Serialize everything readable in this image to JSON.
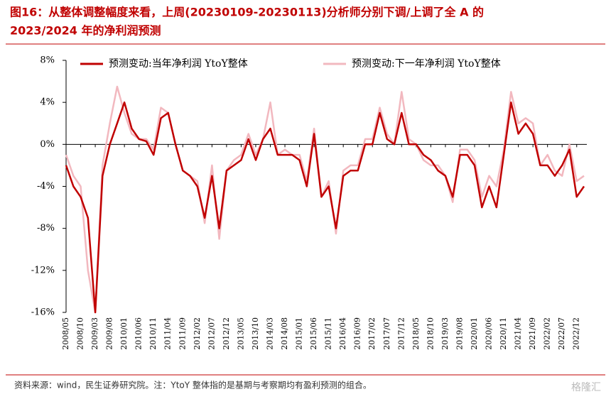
{
  "chart_data": {
    "type": "line",
    "title": "图16：从整体调整幅度来看，上周(20230109-20230113)分析师分别下调/上调了全  A  的",
    "subtitle": "2023/2024 年的净利润预测",
    "source": "资料来源：wind，民生证券研究院。注：YtoY 整体指的是基期与考察期均有盈利预测的组合。",
    "watermark": "格隆汇",
    "categories": [
      "2008/05",
      null,
      "2008/10",
      null,
      "2009/03",
      null,
      "2009/08",
      null,
      "2010/01",
      null,
      "2010/06",
      null,
      "2010/11",
      null,
      "2011/04",
      null,
      "2011/09",
      null,
      "2012/02",
      null,
      "2012/07",
      null,
      "2012/12",
      null,
      "2013/05",
      null,
      "2013/10",
      null,
      "2014/03",
      null,
      "2014/08",
      null,
      "2015/01",
      null,
      "2015/06",
      null,
      "2015/11",
      null,
      "2016/04",
      null,
      "2016/09",
      null,
      "2017/02",
      null,
      "2017/07",
      null,
      "2017/12",
      null,
      "2018/05",
      null,
      "2018/10",
      null,
      "2019/03",
      null,
      "2019/08",
      null,
      "2020/01",
      null,
      "2020/06",
      null,
      "2020/11",
      null,
      "2021/04",
      null,
      "2021/09",
      null,
      "2022/02",
      null,
      "2022/07",
      null,
      "2022/12",
      null
    ],
    "series": [
      {
        "name": "预测变动:当年净利润 YtoY整体",
        "color": "#c00000",
        "values": [
          -2,
          -4,
          -5,
          -7,
          -16,
          -3,
          0,
          2,
          4,
          1.5,
          0.5,
          0.3,
          -1,
          2.5,
          3,
          0,
          -2.5,
          -3,
          -4,
          -7,
          -3,
          -8,
          -2.5,
          -2,
          -1.5,
          0.5,
          -1.5,
          0.5,
          1.5,
          -1,
          -1,
          -1,
          -1.5,
          -4,
          1,
          -5,
          -4,
          -8,
          -3,
          -2.5,
          -2.5,
          0,
          0,
          3,
          0.5,
          0,
          3,
          0,
          0,
          -1,
          -1.5,
          -2.5,
          -3,
          -5,
          -1,
          -1,
          -2,
          -6,
          -4,
          -6,
          -1,
          4,
          1,
          2,
          1,
          -2,
          -2,
          -3,
          -2,
          -0.5,
          -5,
          -4
        ]
      },
      {
        "name": "预测变动:下一年净利润 YtoY整体",
        "color": "#f2b8bf",
        "values": [
          -1,
          -3,
          -4,
          -12,
          -16,
          -2,
          2,
          5.5,
          3,
          1,
          0.5,
          0.5,
          -0.5,
          3.5,
          3,
          0,
          -2.5,
          -3,
          -3.5,
          -7.5,
          -2,
          -9,
          -2.5,
          -1.5,
          -1,
          1,
          -1,
          0.5,
          4,
          -1,
          -0.5,
          -1,
          -1,
          -3.5,
          1.5,
          -5,
          -3.5,
          -8.5,
          -2.5,
          -2,
          -2,
          0.5,
          0.5,
          3.5,
          1,
          0,
          5,
          0.5,
          0,
          -1.5,
          -2,
          -2,
          -3,
          -5.5,
          -0.5,
          -0.5,
          -1.5,
          -5,
          -3,
          -4,
          -0.5,
          5,
          2,
          2.5,
          2,
          -2,
          -1,
          -2.5,
          -3,
          0,
          -3.5,
          -3
        ]
      }
    ],
    "ylim": [
      -16,
      8
    ],
    "yticks": [
      {
        "value": -16,
        "label": "-16%"
      },
      {
        "value": -12,
        "label": "-12%"
      },
      {
        "value": -8,
        "label": "-8%"
      },
      {
        "value": -4,
        "label": "-4%"
      },
      {
        "value": 0,
        "label": "0%"
      },
      {
        "value": 4,
        "label": "4%"
      },
      {
        "value": 8,
        "label": "8%"
      }
    ],
    "legend": "top"
  }
}
